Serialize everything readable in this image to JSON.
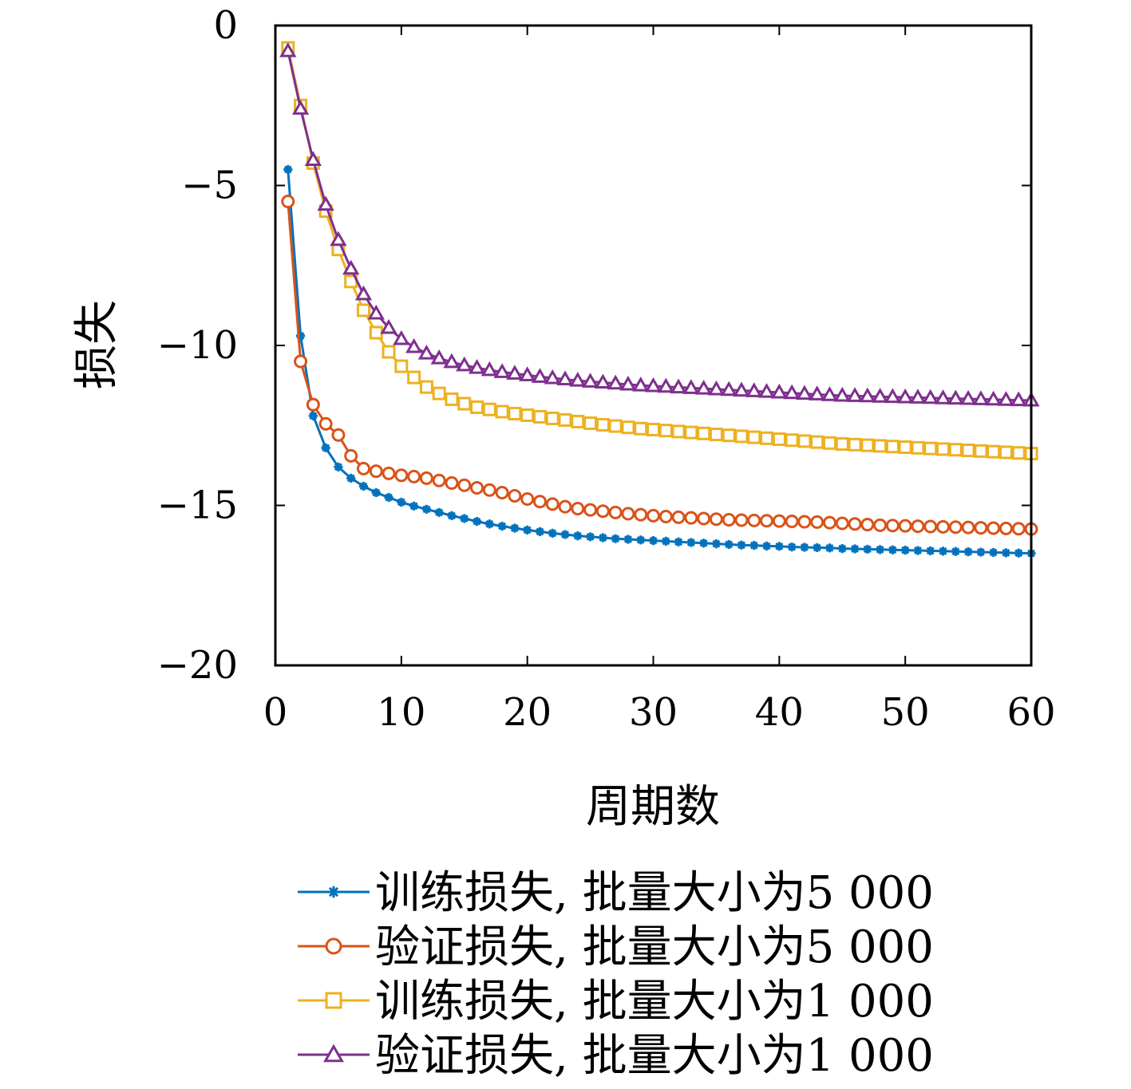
{
  "chart_data": {
    "type": "line",
    "title": "",
    "xlabel": "周期数",
    "ylabel": "损失",
    "xlim": [
      0,
      60
    ],
    "ylim": [
      -20,
      0
    ],
    "xticks": [
      "0",
      "10",
      "20",
      "30",
      "40",
      "50",
      "60"
    ],
    "yticks": [
      "0",
      "−5",
      "−10",
      "−15",
      "−20"
    ],
    "grid": false,
    "legend_position": "bottom-outside",
    "x": [
      1,
      2,
      3,
      4,
      5,
      6,
      7,
      8,
      9,
      10,
      11,
      12,
      13,
      14,
      15,
      16,
      17,
      18,
      19,
      20,
      21,
      22,
      23,
      24,
      25,
      26,
      27,
      28,
      29,
      30,
      31,
      32,
      33,
      34,
      35,
      36,
      37,
      38,
      39,
      40,
      41,
      42,
      43,
      44,
      45,
      46,
      47,
      48,
      49,
      50,
      51,
      52,
      53,
      54,
      55,
      56,
      57,
      58,
      59,
      60
    ],
    "series": [
      {
        "name": "训练损失, 批量大小为5 000",
        "color": "#0072BD",
        "marker": "asterisk",
        "values": [
          -4.5,
          -9.7,
          -12.2,
          -13.2,
          -13.8,
          -14.15,
          -14.4,
          -14.6,
          -14.75,
          -14.9,
          -15.02,
          -15.12,
          -15.22,
          -15.32,
          -15.41,
          -15.5,
          -15.58,
          -15.65,
          -15.71,
          -15.77,
          -15.82,
          -15.87,
          -15.91,
          -15.95,
          -15.98,
          -16.01,
          -16.04,
          -16.06,
          -16.08,
          -16.1,
          -16.12,
          -16.14,
          -16.16,
          -16.18,
          -16.2,
          -16.22,
          -16.24,
          -16.25,
          -16.27,
          -16.28,
          -16.3,
          -16.31,
          -16.32,
          -16.33,
          -16.35,
          -16.36,
          -16.37,
          -16.38,
          -16.39,
          -16.4,
          -16.41,
          -16.42,
          -16.43,
          -16.44,
          -16.45,
          -16.46,
          -16.47,
          -16.48,
          -16.49,
          -16.5
        ]
      },
      {
        "name": "验证损失, 批量大小为5 000",
        "color": "#D95319",
        "marker": "circle",
        "values": [
          -5.5,
          -10.5,
          -11.85,
          -12.45,
          -12.8,
          -13.45,
          -13.85,
          -13.93,
          -14.0,
          -14.06,
          -14.1,
          -14.15,
          -14.22,
          -14.3,
          -14.37,
          -14.45,
          -14.52,
          -14.6,
          -14.7,
          -14.8,
          -14.88,
          -14.96,
          -15.04,
          -15.1,
          -15.14,
          -15.18,
          -15.22,
          -15.26,
          -15.29,
          -15.32,
          -15.35,
          -15.37,
          -15.39,
          -15.41,
          -15.43,
          -15.45,
          -15.46,
          -15.47,
          -15.48,
          -15.49,
          -15.5,
          -15.51,
          -15.52,
          -15.54,
          -15.56,
          -15.58,
          -15.6,
          -15.62,
          -15.63,
          -15.64,
          -15.65,
          -15.66,
          -15.67,
          -15.68,
          -15.69,
          -15.7,
          -15.71,
          -15.72,
          -15.73,
          -15.74
        ]
      },
      {
        "name": "训练损失, 批量大小为1 000",
        "color": "#EDB120",
        "marker": "square",
        "values": [
          -0.7,
          -2.5,
          -4.3,
          -5.8,
          -7.0,
          -8.0,
          -8.9,
          -9.6,
          -10.2,
          -10.65,
          -11.0,
          -11.3,
          -11.5,
          -11.68,
          -11.82,
          -11.93,
          -12.0,
          -12.07,
          -12.13,
          -12.18,
          -12.23,
          -12.28,
          -12.33,
          -12.38,
          -12.43,
          -12.48,
          -12.52,
          -12.56,
          -12.6,
          -12.63,
          -12.66,
          -12.69,
          -12.72,
          -12.75,
          -12.78,
          -12.81,
          -12.84,
          -12.87,
          -12.9,
          -12.93,
          -12.96,
          -12.99,
          -13.02,
          -13.05,
          -13.08,
          -13.1,
          -13.12,
          -13.14,
          -13.16,
          -13.18,
          -13.2,
          -13.22,
          -13.24,
          -13.26,
          -13.28,
          -13.3,
          -13.32,
          -13.34,
          -13.36,
          -13.38
        ]
      },
      {
        "name": "验证损失, 批量大小为1 000",
        "color": "#7E2F8E",
        "marker": "triangle",
        "values": [
          -0.8,
          -2.6,
          -4.2,
          -5.6,
          -6.7,
          -7.6,
          -8.4,
          -9.0,
          -9.45,
          -9.8,
          -10.05,
          -10.25,
          -10.4,
          -10.52,
          -10.62,
          -10.7,
          -10.77,
          -10.83,
          -10.88,
          -10.93,
          -10.98,
          -11.02,
          -11.06,
          -11.1,
          -11.13,
          -11.16,
          -11.19,
          -11.22,
          -11.25,
          -11.27,
          -11.29,
          -11.31,
          -11.33,
          -11.35,
          -11.37,
          -11.39,
          -11.41,
          -11.43,
          -11.45,
          -11.47,
          -11.49,
          -11.51,
          -11.53,
          -11.55,
          -11.57,
          -11.58,
          -11.59,
          -11.6,
          -11.61,
          -11.62,
          -11.63,
          -11.64,
          -11.65,
          -11.66,
          -11.67,
          -11.68,
          -11.69,
          -11.7,
          -11.71,
          -11.72
        ]
      }
    ]
  }
}
